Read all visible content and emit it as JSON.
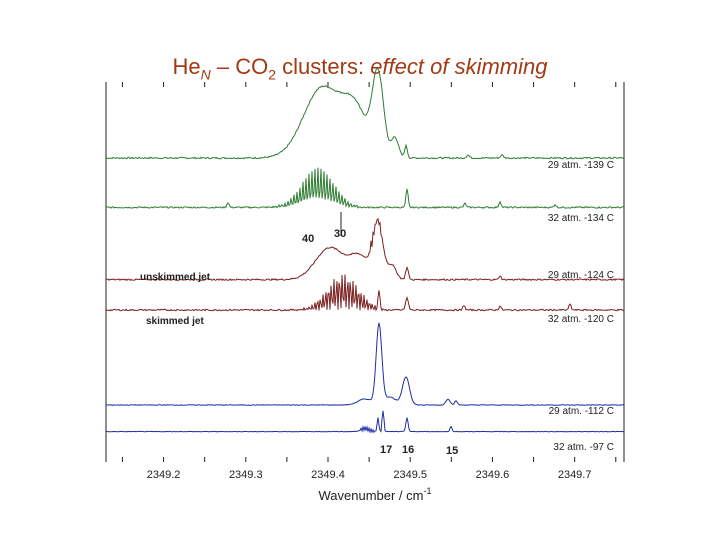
{
  "title": {
    "he": "He",
    "n": "N",
    "dash_co": " – CO",
    "sub2": "2",
    "clusters": "  clusters:  ",
    "italic": "effect of skimming"
  },
  "chart_data": {
    "type": "line",
    "xlabel": "Wavenumber / cm",
    "xlabel_sup": "-1",
    "xlim": [
      2349.13,
      2349.76
    ],
    "x_ticks": [
      "2349.2",
      "2349.3",
      "2349.4",
      "2349.5",
      "2349.6",
      "2349.7"
    ],
    "x_tick_values": [
      2349.2,
      2349.3,
      2349.4,
      2349.5,
      2349.6,
      2349.7
    ],
    "series": [
      {
        "name": "29 atm.  -139 C",
        "color": "#2e7d32",
        "baseline": 0.2,
        "kind": "broad_early"
      },
      {
        "name": "32 atm.  -134 C",
        "color": "#2e7d32",
        "baseline": 0.33,
        "kind": "osc_early"
      },
      {
        "name": "29 atm.  -124 C",
        "color": "#7b1f1f",
        "baseline": 0.52,
        "kind": "broad_mid"
      },
      {
        "name": "32 atm.  -120 C",
        "color": "#7b1f1f",
        "baseline": 0.6,
        "kind": "osc_mid"
      },
      {
        "name": "29 atm.  -112 C",
        "color": "#1f2ea6",
        "baseline": 0.85,
        "kind": "sharp"
      },
      {
        "name": "32 atm.  -97 C",
        "color": "#1f2ea6",
        "baseline": 0.92,
        "kind": "sharp2"
      }
    ],
    "annotations": {
      "unskimmed": "unskimmed jet",
      "skimmed": "skimmed jet",
      "n40": "40",
      "n30": "30",
      "n17": "17",
      "n16": "16",
      "n15": "15"
    }
  }
}
